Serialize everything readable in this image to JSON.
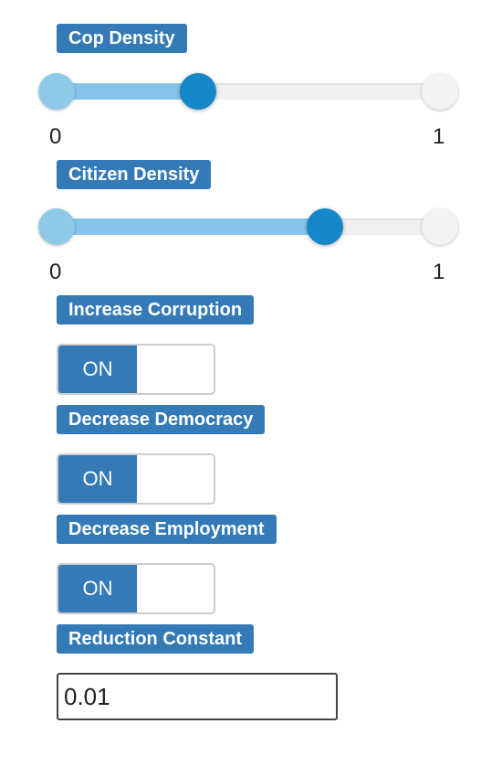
{
  "controls": {
    "cop_density": {
      "label": "Cop Density",
      "min_label": "0",
      "max_label": "1",
      "value": 0.37
    },
    "citizen_density": {
      "label": "Citizen Density",
      "min_label": "0",
      "max_label": "1",
      "value": 0.7
    },
    "increase_corruption": {
      "label": "Increase Corruption",
      "state": "ON"
    },
    "decrease_democracy": {
      "label": "Decrease Democracy",
      "state": "ON"
    },
    "decrease_employment": {
      "label": "Decrease Employment",
      "state": "ON"
    },
    "reduction_constant": {
      "label": "Reduction Constant",
      "value": "0.01"
    }
  },
  "colors": {
    "label_bg": "#337ab7",
    "slider_fill": "#87c4ea",
    "slider_knob": "#1587c9",
    "toggle_on": "#337ab7"
  }
}
